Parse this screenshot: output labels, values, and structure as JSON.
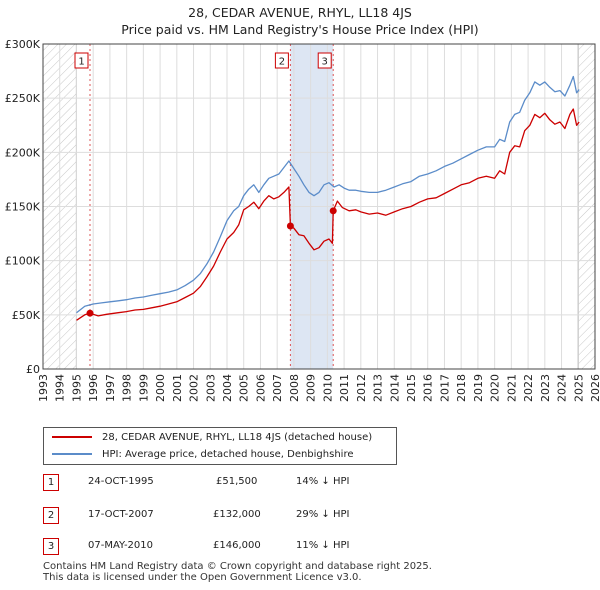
{
  "title_line1": "28, CEDAR AVENUE, RHYL, LL18 4JS",
  "title_line2": "Price paid vs. HM Land Registry's House Price Index (HPI)",
  "colors": {
    "price": "#cc0000",
    "hpi": "#5b8cc9",
    "hatch": "#cccccc",
    "highlight": "#dde6f3"
  },
  "chart_data": {
    "type": "line",
    "xlim": [
      1993,
      2026
    ],
    "ylim": [
      0,
      300000
    ],
    "yticks": [
      0,
      50000,
      100000,
      150000,
      200000,
      250000,
      300000
    ],
    "ytick_labels": [
      "£0",
      "£50K",
      "£100K",
      "£150K",
      "£200K",
      "£250K",
      "£300K"
    ],
    "xticks": [
      1993,
      1994,
      1995,
      1996,
      1997,
      1998,
      1999,
      2000,
      2001,
      2002,
      2003,
      2004,
      2005,
      2006,
      2007,
      2008,
      2009,
      2010,
      2011,
      2012,
      2013,
      2014,
      2015,
      2016,
      2017,
      2018,
      2019,
      2020,
      2021,
      2022,
      2023,
      2024,
      2025,
      2026
    ],
    "hatch_ranges": [
      [
        1993,
        1995.0
      ],
      [
        2025.0,
        2026
      ]
    ],
    "highlight_ranges": [
      [
        2007.79,
        2010.35
      ]
    ],
    "series": [
      {
        "name": "28, CEDAR AVENUE, RHYL, LL18 4JS (detached house)",
        "color": "#cc0000",
        "x": [
          1995.0,
          1995.5,
          1995.8,
          1996.3,
          1996.8,
          1997.5,
          1998.0,
          1998.5,
          1999.0,
          1999.5,
          2000.0,
          2000.5,
          2001.0,
          2001.5,
          2002.0,
          2002.4,
          2002.8,
          2003.2,
          2003.6,
          2004.0,
          2004.4,
          2004.7,
          2005.0,
          2005.3,
          2005.6,
          2005.9,
          2006.2,
          2006.5,
          2006.8,
          2007.1,
          2007.4,
          2007.7,
          2007.79,
          2008.0,
          2008.3,
          2008.6,
          2008.9,
          2009.2,
          2009.5,
          2009.8,
          2010.1,
          2010.3,
          2010.35,
          2010.6,
          2010.9,
          2011.3,
          2011.7,
          2012.0,
          2012.5,
          2013.0,
          2013.5,
          2014.0,
          2014.5,
          2015.0,
          2015.5,
          2016.0,
          2016.5,
          2017.0,
          2017.5,
          2018.0,
          2018.5,
          2019.0,
          2019.5,
          2020.0,
          2020.3,
          2020.6,
          2020.9,
          2021.2,
          2021.5,
          2021.8,
          2022.1,
          2022.4,
          2022.7,
          2023.0,
          2023.3,
          2023.6,
          2023.9,
          2024.2,
          2024.5,
          2024.7,
          2024.9,
          2025.05
        ],
        "y": [
          45000,
          50000,
          51500,
          49000,
          50500,
          52000,
          53000,
          54500,
          55000,
          56500,
          58000,
          60000,
          62000,
          66000,
          70000,
          76000,
          85000,
          95000,
          108000,
          120000,
          126000,
          133000,
          147000,
          150000,
          154000,
          148000,
          155000,
          160000,
          157000,
          159000,
          163000,
          168000,
          132000,
          130000,
          124000,
          123000,
          116000,
          110000,
          112000,
          118000,
          120000,
          116000,
          146000,
          155000,
          149000,
          146000,
          147000,
          145000,
          143000,
          144000,
          142000,
          145000,
          148000,
          150000,
          154000,
          157000,
          158000,
          162000,
          166000,
          170000,
          172000,
          176000,
          178000,
          176000,
          183000,
          180000,
          200000,
          206000,
          205000,
          220000,
          225000,
          235000,
          232000,
          236000,
          230000,
          226000,
          228000,
          222000,
          235000,
          240000,
          225000,
          228000
        ]
      },
      {
        "name": "HPI: Average price, detached house, Denbighshire",
        "color": "#5b8cc9",
        "x": [
          1995.0,
          1995.5,
          1996.0,
          1996.5,
          1997.0,
          1997.5,
          1998.0,
          1998.5,
          1999.0,
          1999.5,
          2000.0,
          2000.5,
          2001.0,
          2001.5,
          2002.0,
          2002.4,
          2002.8,
          2003.2,
          2003.6,
          2004.0,
          2004.4,
          2004.7,
          2005.0,
          2005.3,
          2005.6,
          2005.9,
          2006.2,
          2006.5,
          2006.8,
          2007.1,
          2007.4,
          2007.7,
          2008.0,
          2008.3,
          2008.6,
          2008.9,
          2009.2,
          2009.5,
          2009.8,
          2010.1,
          2010.4,
          2010.7,
          2011.0,
          2011.3,
          2011.7,
          2012.0,
          2012.5,
          2013.0,
          2013.5,
          2014.0,
          2014.5,
          2015.0,
          2015.5,
          2016.0,
          2016.5,
          2017.0,
          2017.5,
          2018.0,
          2018.5,
          2019.0,
          2019.5,
          2020.0,
          2020.3,
          2020.6,
          2020.9,
          2021.2,
          2021.5,
          2021.8,
          2022.1,
          2022.4,
          2022.7,
          2023.0,
          2023.3,
          2023.6,
          2023.9,
          2024.2,
          2024.5,
          2024.7,
          2024.9,
          2025.05
        ],
        "y": [
          52000,
          58000,
          60000,
          61000,
          62000,
          63000,
          64000,
          65500,
          66500,
          68000,
          69500,
          71000,
          73000,
          77000,
          82000,
          88000,
          97000,
          108000,
          122000,
          137000,
          146000,
          150000,
          160000,
          166000,
          170000,
          163000,
          170000,
          176000,
          178000,
          180000,
          186000,
          192000,
          185000,
          178000,
          170000,
          163000,
          160000,
          163000,
          170000,
          172000,
          168000,
          170000,
          167000,
          165000,
          165000,
          164000,
          163000,
          163000,
          165000,
          168000,
          171000,
          173000,
          178000,
          180000,
          183000,
          187000,
          190000,
          194000,
          198000,
          202000,
          205000,
          205000,
          212000,
          210000,
          228000,
          235000,
          237000,
          248000,
          255000,
          265000,
          262000,
          265000,
          260000,
          256000,
          257000,
          252000,
          262000,
          270000,
          255000,
          258000
        ]
      }
    ],
    "markers": [
      {
        "label": "1",
        "x": 1995.81,
        "y": 51500
      },
      {
        "label": "2",
        "x": 2007.79,
        "y": 132000
      },
      {
        "label": "3",
        "x": 2010.35,
        "y": 146000
      }
    ]
  },
  "legend": {
    "price_label": "28, CEDAR AVENUE, RHYL, LL18 4JS (detached house)",
    "hpi_label": "HPI: Average price, detached house, Denbighshire"
  },
  "transactions": [
    {
      "num": "1",
      "date": "24-OCT-1995",
      "price": "£51,500",
      "hpi": "14% ↓ HPI"
    },
    {
      "num": "2",
      "date": "17-OCT-2007",
      "price": "£132,000",
      "hpi": "29% ↓ HPI"
    },
    {
      "num": "3",
      "date": "07-MAY-2010",
      "price": "£146,000",
      "hpi": "11% ↓ HPI"
    }
  ],
  "footer_line1": "Contains HM Land Registry data © Crown copyright and database right 2025.",
  "footer_line2": "This data is licensed under the Open Government Licence v3.0."
}
